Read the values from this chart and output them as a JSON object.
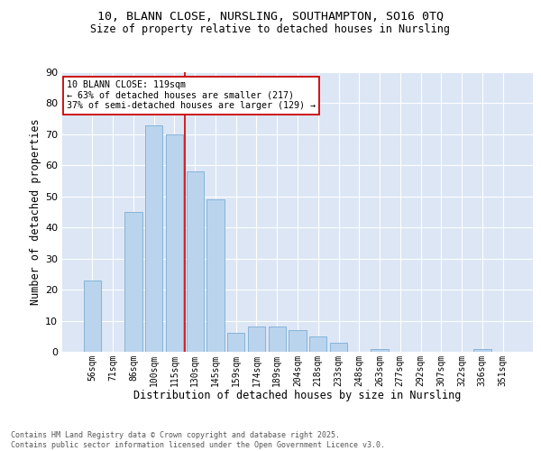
{
  "title_line1": "10, BLANN CLOSE, NURSLING, SOUTHAMPTON, SO16 0TQ",
  "title_line2": "Size of property relative to detached houses in Nursling",
  "xlabel": "Distribution of detached houses by size in Nursling",
  "ylabel": "Number of detached properties",
  "bar_categories": [
    "56sqm",
    "71sqm",
    "86sqm",
    "100sqm",
    "115sqm",
    "130sqm",
    "145sqm",
    "159sqm",
    "174sqm",
    "189sqm",
    "204sqm",
    "218sqm",
    "233sqm",
    "248sqm",
    "263sqm",
    "277sqm",
    "292sqm",
    "307sqm",
    "322sqm",
    "336sqm",
    "351sqm"
  ],
  "bar_values": [
    23,
    0,
    45,
    73,
    70,
    58,
    49,
    6,
    8,
    8,
    7,
    5,
    3,
    0,
    1,
    0,
    0,
    0,
    0,
    1,
    0
  ],
  "bar_color": "#bad4ed",
  "bar_edge_color": "#7aadd4",
  "bg_color": "#dce6f5",
  "grid_color": "#ffffff",
  "vline_x_index": 4.5,
  "vline_color": "#cc0000",
  "annotation_text": "10 BLANN CLOSE: 119sqm\n← 63% of detached houses are smaller (217)\n37% of semi-detached houses are larger (129) →",
  "annotation_box_color": "#cc0000",
  "annotation_fill": "#ffffff",
  "footer_line1": "Contains HM Land Registry data © Crown copyright and database right 2025.",
  "footer_line2": "Contains public sector information licensed under the Open Government Licence v3.0.",
  "fig_bg_color": "#ffffff",
  "ylim": [
    0,
    90
  ],
  "yticks": [
    0,
    10,
    20,
    30,
    40,
    50,
    60,
    70,
    80,
    90
  ]
}
